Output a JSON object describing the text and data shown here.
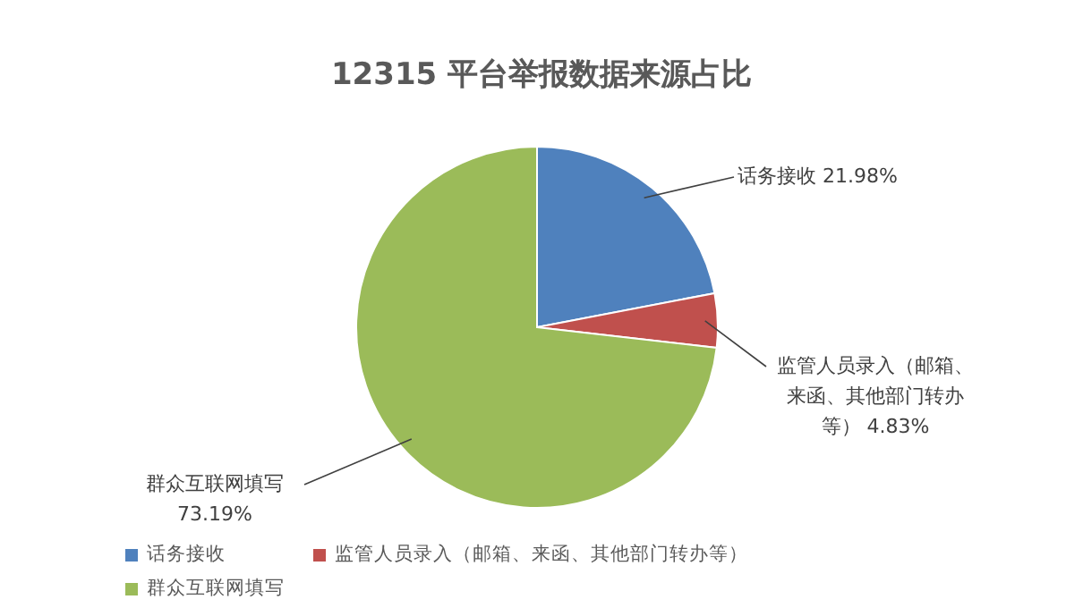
{
  "chart_data": {
    "type": "pie",
    "title": "12315 平台举报数据来源占比",
    "categories": [
      "话务接收",
      "监管人员录入（邮箱、来函、其他部门转办等）",
      "群众互联网填写"
    ],
    "values": [
      21.98,
      4.83,
      73.19
    ],
    "value_labels": [
      "21.98%",
      "4.83%",
      "73.19%"
    ],
    "colors": [
      "#4f81bd",
      "#c0504d",
      "#9bbb59"
    ],
    "legend": "bottom"
  }
}
